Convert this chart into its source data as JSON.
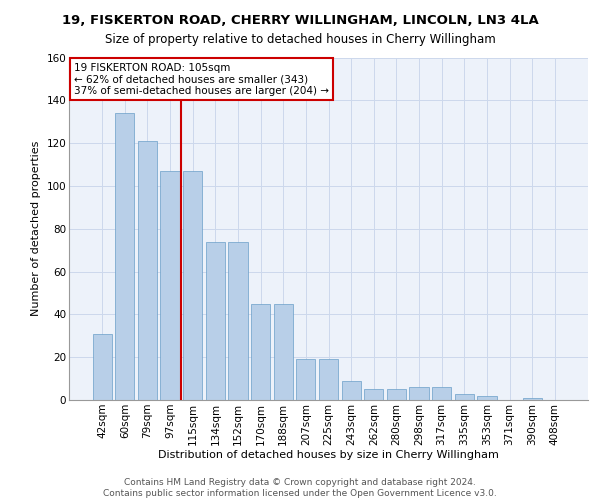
{
  "title1": "19, FISKERTON ROAD, CHERRY WILLINGHAM, LINCOLN, LN3 4LA",
  "title2": "Size of property relative to detached houses in Cherry Willingham",
  "xlabel": "Distribution of detached houses by size in Cherry Willingham",
  "ylabel": "Number of detached properties",
  "categories": [
    "42sqm",
    "60sqm",
    "79sqm",
    "97sqm",
    "115sqm",
    "134sqm",
    "152sqm",
    "170sqm",
    "188sqm",
    "207sqm",
    "225sqm",
    "243sqm",
    "262sqm",
    "280sqm",
    "298sqm",
    "317sqm",
    "335sqm",
    "353sqm",
    "371sqm",
    "390sqm",
    "408sqm"
  ],
  "values": [
    31,
    134,
    121,
    107,
    107,
    74,
    74,
    45,
    45,
    19,
    19,
    9,
    5,
    5,
    6,
    6,
    3,
    2,
    0,
    1,
    0
  ],
  "bar_color": "#b8cfe8",
  "bar_edge_color": "#6a9ec8",
  "vline_x": 3.5,
  "vline_color": "#cc0000",
  "annotation_text": "19 FISKERTON ROAD: 105sqm\n← 62% of detached houses are smaller (343)\n37% of semi-detached houses are larger (204) →",
  "annotation_box_color": "#cc0000",
  "ylim": [
    0,
    160
  ],
  "yticks": [
    0,
    20,
    40,
    60,
    80,
    100,
    120,
    140,
    160
  ],
  "grid_color": "#ccd8ec",
  "background_color": "#edf2fa",
  "footer": "Contains HM Land Registry data © Crown copyright and database right 2024.\nContains public sector information licensed under the Open Government Licence v3.0.",
  "title1_fontsize": 9.5,
  "title2_fontsize": 8.5,
  "xlabel_fontsize": 8,
  "ylabel_fontsize": 8,
  "tick_fontsize": 7.5,
  "annotation_fontsize": 7.5,
  "footer_fontsize": 6.5
}
